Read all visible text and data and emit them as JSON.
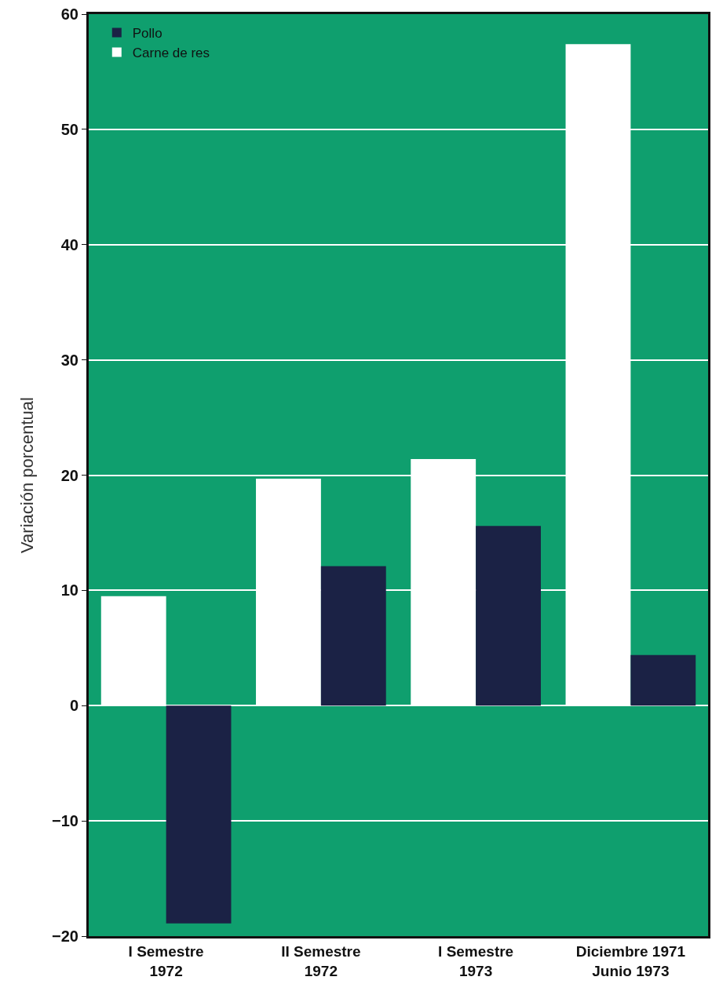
{
  "chart_data": {
    "type": "bar",
    "ylabel": "Variación porcentual",
    "categories": [
      "I Semestre\n1972",
      "II Semestre\n1972",
      "I Semestre\n1973",
      "Diciembre 1971\nJunio 1973"
    ],
    "series": [
      {
        "name": "Carne de res",
        "color": "#ffffff",
        "values": [
          9.5,
          19.7,
          21.4,
          57.4
        ]
      },
      {
        "name": "Pollo",
        "color": "#1b2245",
        "values": [
          -18.9,
          12.1,
          15.6,
          4.4
        ]
      }
    ],
    "ylim": [
      -20,
      60
    ],
    "yticks": [
      -20,
      -10,
      0,
      10,
      20,
      30,
      40,
      50,
      60
    ],
    "grid": "y",
    "legend": "top left"
  }
}
